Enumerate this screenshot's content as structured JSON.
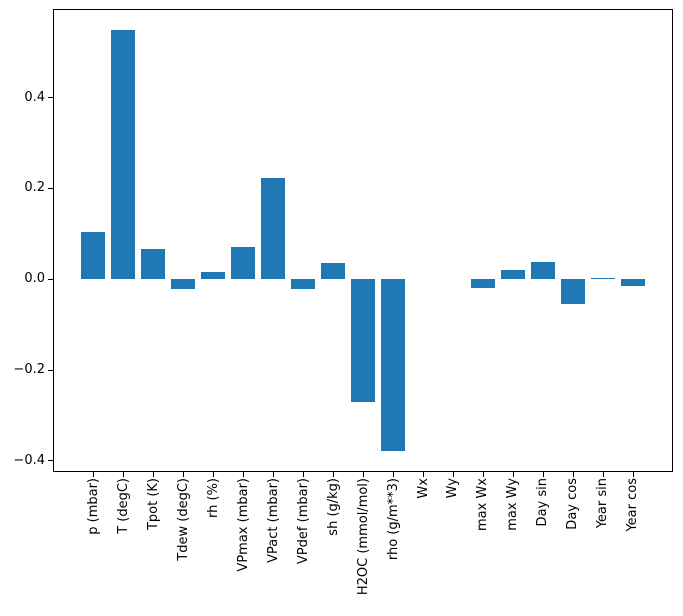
{
  "chart_data": {
    "type": "bar",
    "title": "",
    "xlabel": "",
    "ylabel": "",
    "grid": false,
    "legend_position": "none",
    "bar_color": "#1f77b4",
    "axis_color": "#000000",
    "categories": [
      "p (mbar)",
      "T (degC)",
      "Tpot (K)",
      "Tdew (degC)",
      "rh (%)",
      "VPmax (mbar)",
      "VPact (mbar)",
      "VPdef (mbar)",
      "sh (g/kg)",
      "H2OC (mmol/mol)",
      "rho (g/m**3)",
      "Wx",
      "Wy",
      "max Wx",
      "max Wy",
      "Day sin",
      "Day cos",
      "Year sin",
      "Year cos"
    ],
    "values": [
      0.103,
      0.548,
      0.067,
      -0.021,
      0.016,
      0.07,
      0.222,
      -0.021,
      0.036,
      -0.27,
      -0.378,
      0.0,
      0.0,
      -0.019,
      0.02,
      0.037,
      -0.054,
      0.003,
      -0.015
    ],
    "ytick_values": [
      -0.4,
      -0.2,
      0.0,
      0.2,
      0.4
    ],
    "ytick_labels": [
      "−0.4",
      "−0.2",
      "0.0",
      "0.2",
      "0.4"
    ],
    "ylim": [
      -0.4244,
      0.5947
    ],
    "xlim": [
      -1.34,
      19.34
    ],
    "bar_width_fraction": 0.8,
    "x_tick_label_rotation_deg": 90
  }
}
